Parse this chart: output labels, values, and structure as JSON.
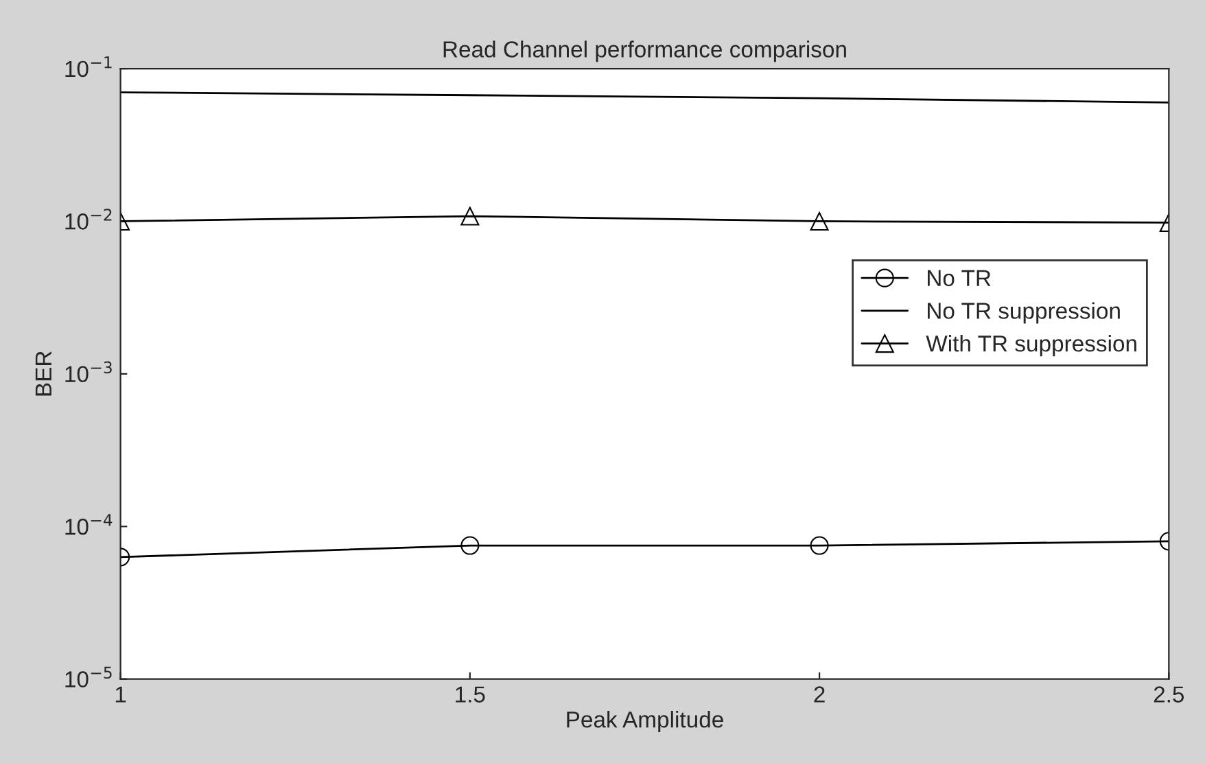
{
  "chart_data": {
    "type": "line",
    "title": "Read Channel performance comparison",
    "xlabel": "Peak Amplitude",
    "ylabel": "BER",
    "x": [
      1,
      1.5,
      2,
      2.5
    ],
    "series": [
      {
        "name": "No TR",
        "color": "#000000",
        "marker": "circle",
        "values": [
          6.3e-05,
          7.5e-05,
          7.5e-05,
          8e-05
        ]
      },
      {
        "name": "No TR suppression",
        "color": "#000000",
        "marker": "none",
        "values": [
          0.07,
          0.067,
          0.064,
          0.06
        ]
      },
      {
        "name": "With TR suppression",
        "color": "#000000",
        "marker": "triangle",
        "values": [
          0.01,
          0.0108,
          0.01,
          0.0098
        ]
      }
    ],
    "log": "y",
    "xlim": [
      1,
      2.5
    ],
    "xticks": [
      1,
      1.5,
      2,
      2.5
    ],
    "ylim": [
      1e-05,
      0.1
    ],
    "yticks": [
      {
        "value": 1e-05,
        "label": "10$^{−5}$"
      },
      {
        "value": 0.0001,
        "label": "10$^{−4}$"
      },
      {
        "value": 0.001,
        "label": "10$^{−3}$"
      },
      {
        "value": 0.01,
        "label": "10$^{−2}$"
      },
      {
        "value": 0.1,
        "label": "10$^{−1}$"
      }
    ],
    "grid": false,
    "legend": "right",
    "line_style": "solid"
  }
}
